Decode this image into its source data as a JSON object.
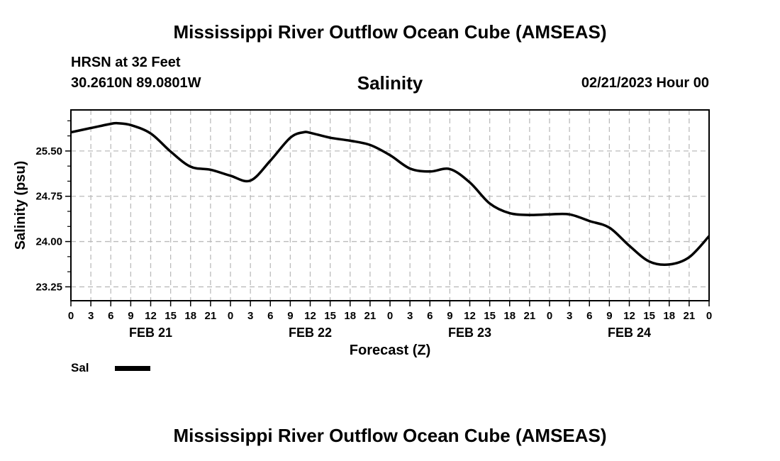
{
  "header": {
    "title": "Mississippi River Outflow Ocean Cube (AMSEAS)",
    "station": "HRSN at 32 Feet",
    "coords": "30.2610N  89.0801W",
    "variable": "Salinity",
    "datetime": "02/21/2023 Hour 00"
  },
  "footer": {
    "title": "Mississippi River Outflow Ocean Cube (AMSEAS)"
  },
  "legend": {
    "label": "Sal"
  },
  "colors": {
    "line": "#000000",
    "grid": "#bbbbbb"
  },
  "chart_data": {
    "type": "line",
    "title": "Salinity",
    "xlabel": "Forecast (Z)",
    "ylabel": "Salinity (psu)",
    "xlim": [
      0,
      96
    ],
    "ylim": [
      23.02,
      26.18
    ],
    "grid": true,
    "legend_position": "bottom-left",
    "yticks": [
      {
        "value": 23.25,
        "label": "23.25"
      },
      {
        "value": 24.0,
        "label": "24.00"
      },
      {
        "value": 24.75,
        "label": "24.75"
      },
      {
        "value": 25.5,
        "label": "25.50"
      }
    ],
    "xticks": [
      {
        "value": 0,
        "label": "0"
      },
      {
        "value": 3,
        "label": "3"
      },
      {
        "value": 6,
        "label": "6"
      },
      {
        "value": 9,
        "label": "9"
      },
      {
        "value": 12,
        "label": "12"
      },
      {
        "value": 15,
        "label": "15"
      },
      {
        "value": 18,
        "label": "18"
      },
      {
        "value": 21,
        "label": "21"
      },
      {
        "value": 24,
        "label": "0"
      },
      {
        "value": 27,
        "label": "3"
      },
      {
        "value": 30,
        "label": "6"
      },
      {
        "value": 33,
        "label": "9"
      },
      {
        "value": 36,
        "label": "12"
      },
      {
        "value": 39,
        "label": "15"
      },
      {
        "value": 42,
        "label": "18"
      },
      {
        "value": 45,
        "label": "21"
      },
      {
        "value": 48,
        "label": "0"
      },
      {
        "value": 51,
        "label": "3"
      },
      {
        "value": 54,
        "label": "6"
      },
      {
        "value": 57,
        "label": "9"
      },
      {
        "value": 60,
        "label": "12"
      },
      {
        "value": 63,
        "label": "15"
      },
      {
        "value": 66,
        "label": "18"
      },
      {
        "value": 69,
        "label": "21"
      },
      {
        "value": 72,
        "label": "0"
      },
      {
        "value": 75,
        "label": "3"
      },
      {
        "value": 78,
        "label": "6"
      },
      {
        "value": 81,
        "label": "9"
      },
      {
        "value": 84,
        "label": "12"
      },
      {
        "value": 87,
        "label": "15"
      },
      {
        "value": 90,
        "label": "18"
      },
      {
        "value": 93,
        "label": "21"
      },
      {
        "value": 96,
        "label": "0"
      }
    ],
    "day_labels": [
      {
        "value": 12,
        "label": "FEB 21"
      },
      {
        "value": 36,
        "label": "FEB 22"
      },
      {
        "value": 60,
        "label": "FEB 23"
      },
      {
        "value": 84,
        "label": "FEB 24"
      }
    ],
    "series": [
      {
        "name": "Sal",
        "x": [
          0,
          3,
          6,
          7,
          9,
          12,
          15,
          18,
          21,
          24,
          27,
          30,
          33,
          35,
          36,
          39,
          42,
          45,
          48,
          51,
          54,
          57,
          60,
          63,
          66,
          69,
          72,
          75,
          78,
          81,
          84,
          87,
          90,
          93,
          96
        ],
        "values": [
          25.81,
          25.88,
          25.95,
          25.96,
          25.93,
          25.79,
          25.49,
          25.24,
          25.19,
          25.09,
          25.01,
          25.34,
          25.72,
          25.81,
          25.8,
          25.72,
          25.67,
          25.6,
          25.43,
          25.21,
          25.16,
          25.2,
          24.98,
          24.63,
          24.47,
          24.44,
          24.45,
          24.45,
          24.34,
          24.23,
          23.93,
          23.67,
          23.62,
          23.74,
          24.09
        ]
      }
    ]
  }
}
